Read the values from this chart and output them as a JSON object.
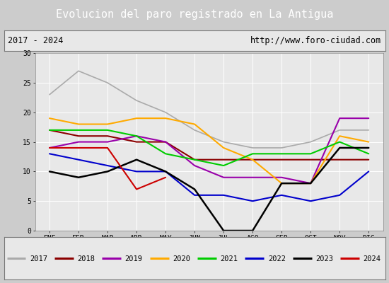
{
  "title": "Evolucion del paro registrado en La Antigua",
  "subtitle_left": "2017 - 2024",
  "subtitle_right": "http://www.foro-ciudad.com",
  "months": [
    "ENE",
    "FEB",
    "MAR",
    "ABR",
    "MAY",
    "JUN",
    "JUL",
    "AGO",
    "SEP",
    "OCT",
    "NOV",
    "DIC"
  ],
  "ylim": [
    0,
    30
  ],
  "yticks": [
    0,
    5,
    10,
    15,
    20,
    25,
    30
  ],
  "series": [
    {
      "year": "2017",
      "color": "#aaaaaa",
      "lw": 1.2,
      "values": [
        23,
        27,
        25,
        22,
        20,
        17,
        15,
        14,
        14,
        15,
        17,
        17
      ]
    },
    {
      "year": "2018",
      "color": "#8b0000",
      "lw": 1.5,
      "values": [
        17,
        16,
        16,
        15,
        15,
        12,
        12,
        12,
        12,
        12,
        12,
        12
      ]
    },
    {
      "year": "2019",
      "color": "#9900aa",
      "lw": 1.5,
      "values": [
        14,
        15,
        15,
        16,
        15,
        11,
        9,
        9,
        9,
        8,
        19,
        19
      ]
    },
    {
      "year": "2020",
      "color": "#ffaa00",
      "lw": 1.5,
      "values": [
        19,
        18,
        18,
        19,
        19,
        18,
        14,
        12,
        8,
        8,
        16,
        15
      ]
    },
    {
      "year": "2021",
      "color": "#00cc00",
      "lw": 1.5,
      "values": [
        17,
        17,
        17,
        16,
        13,
        12,
        11,
        13,
        13,
        13,
        15,
        13
      ]
    },
    {
      "year": "2022",
      "color": "#0000cc",
      "lw": 1.5,
      "values": [
        13,
        12,
        11,
        10,
        10,
        6,
        6,
        5,
        6,
        5,
        6,
        10
      ]
    },
    {
      "year": "2023",
      "color": "#000000",
      "lw": 1.8,
      "values": [
        10,
        9,
        10,
        12,
        10,
        7,
        0,
        0,
        8,
        8,
        14,
        14
      ]
    },
    {
      "year": "2024",
      "color": "#cc0000",
      "lw": 1.5,
      "values": [
        14,
        14,
        14,
        7,
        9,
        null,
        null,
        null,
        null,
        null,
        null,
        null
      ]
    }
  ],
  "title_bg": "#5b8dd9",
  "title_fg": "#ffffff",
  "subtitle_bg": "#e8e8e8",
  "plot_bg": "#e8e8e8",
  "legend_bg": "#e8e8e8",
  "outer_bg": "#cccccc"
}
